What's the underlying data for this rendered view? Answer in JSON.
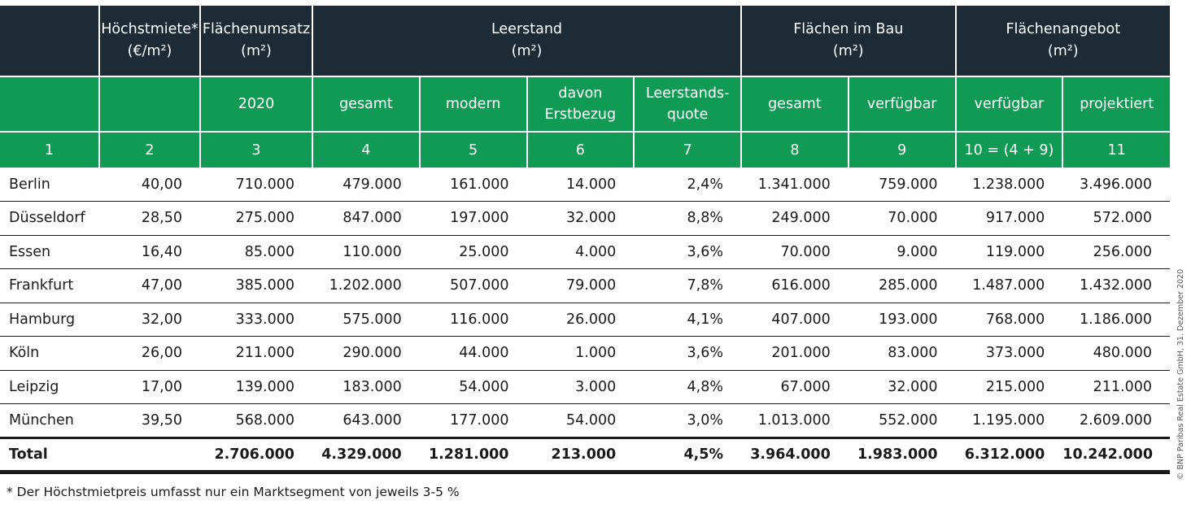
{
  "header_row1": [
    {
      "label": "",
      "colspan": 1
    },
    {
      "label": "Höchstmiete*\n(€/m²)",
      "colspan": 1
    },
    {
      "label": "Flächenumsatz\n(m²)",
      "colspan": 1
    },
    {
      "label": "Leerstand\n(m²)",
      "colspan": 4
    },
    {
      "label": "Flächen im Bau\n(m²)",
      "colspan": 2
    },
    {
      "label": "Flächenangebot\n(m²)",
      "colspan": 2
    }
  ],
  "header_row2": [
    "",
    "",
    "2020",
    "gesamt",
    "modern",
    "davon\nErstbezug",
    "Leerstands-\nquote",
    "gesamt",
    "verfügbar",
    "verfügbar",
    "projektiert"
  ],
  "header_row3": [
    "1",
    "2",
    "3",
    "4",
    "5",
    "6",
    "7",
    "8",
    "9",
    "10 = (4 + 9)",
    "11"
  ],
  "rows": [
    [
      "Berlin",
      "40,00",
      "710.000",
      "479.000",
      "161.000",
      "14.000",
      "2,4%",
      "1.341.000",
      "759.000",
      "1.238.000",
      "3.496.000"
    ],
    [
      "Düsseldorf",
      "28,50",
      "275.000",
      "847.000",
      "197.000",
      "32.000",
      "8,8%",
      "249.000",
      "70.000",
      "917.000",
      "572.000"
    ],
    [
      "Essen",
      "16,40",
      "85.000",
      "110.000",
      "25.000",
      "4.000",
      "3,6%",
      "70.000",
      "9.000",
      "119.000",
      "256.000"
    ],
    [
      "Frankfurt",
      "47,00",
      "385.000",
      "1.202.000",
      "507.000",
      "79.000",
      "7,8%",
      "616.000",
      "285.000",
      "1.487.000",
      "1.432.000"
    ],
    [
      "Hamburg",
      "32,00",
      "333.000",
      "575.000",
      "116.000",
      "26.000",
      "4,1%",
      "407.000",
      "193.000",
      "768.000",
      "1.186.000"
    ],
    [
      "Köln",
      "26,00",
      "211.000",
      "290.000",
      "44.000",
      "1.000",
      "3,6%",
      "201.000",
      "83.000",
      "373.000",
      "480.000"
    ],
    [
      "Leipzig",
      "17,00",
      "139.000",
      "183.000",
      "54.000",
      "3.000",
      "4,8%",
      "67.000",
      "32.000",
      "215.000",
      "211.000"
    ],
    [
      "München",
      "39,50",
      "568.000",
      "643.000",
      "177.000",
      "54.000",
      "3,0%",
      "1.013.000",
      "552.000",
      "1.195.000",
      "2.609.000"
    ]
  ],
  "total": [
    "Total",
    "",
    "2.706.000",
    "4.329.000",
    "1.281.000",
    "213.000",
    "4,5%",
    "3.964.000",
    "1.983.000",
    "6.312.000",
    "10.242.000"
  ],
  "footnote": "* Der Höchstmietpreis umfasst nur ein Marktsegment von jeweils 3-5 %",
  "copyright": "© BNP Paribas Real Estate GmbH, 31. Dezember 2020",
  "colors": {
    "dark_header": "#1d2b36",
    "green_header": "#119a53"
  }
}
